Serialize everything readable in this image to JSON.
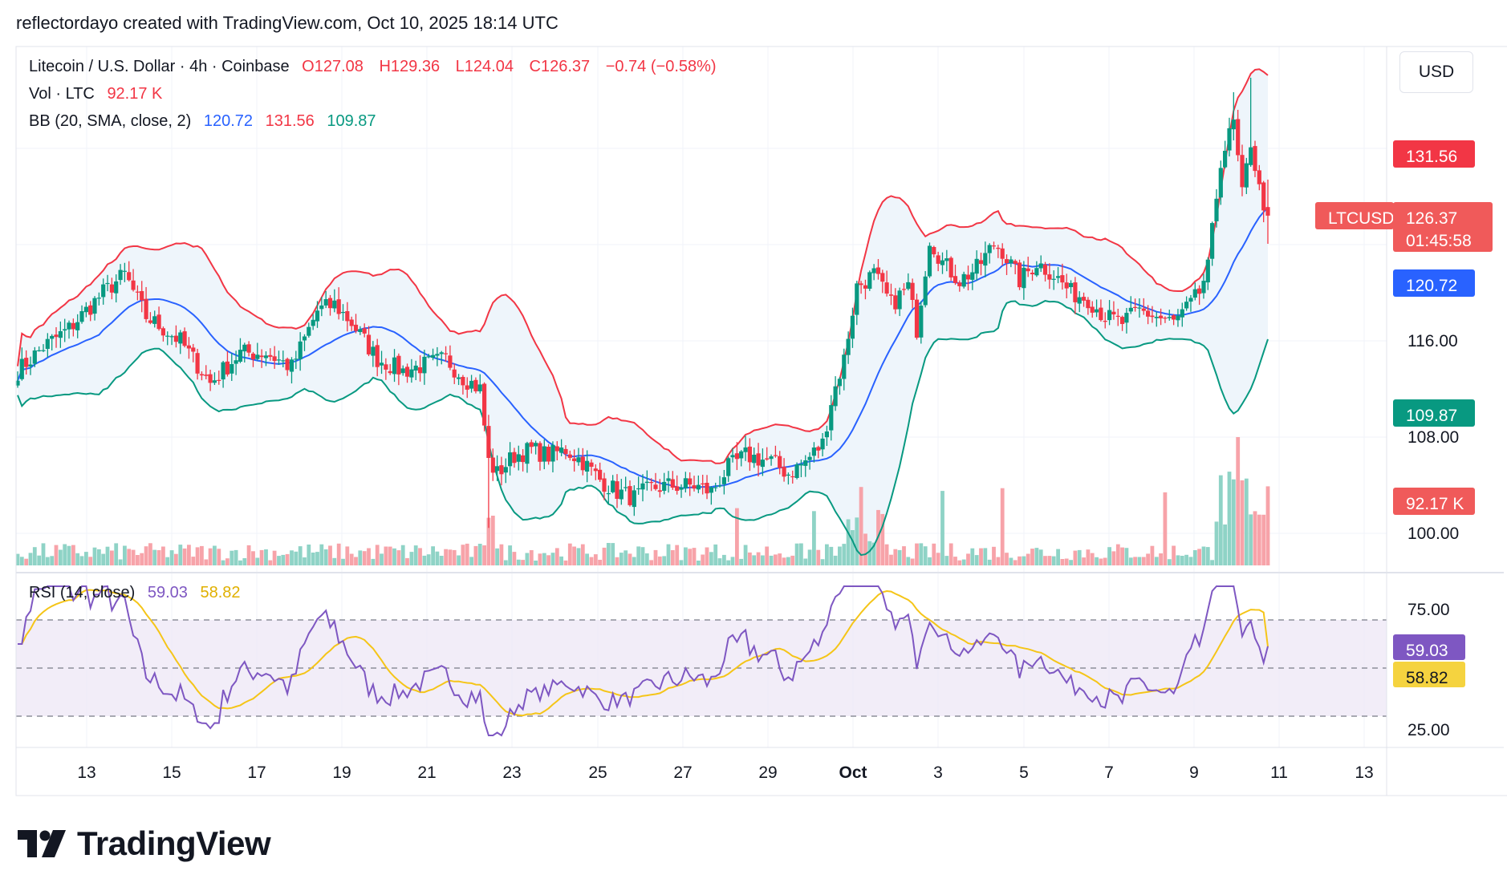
{
  "header": {
    "attribution": "reflectordayo created with TradingView.com, Oct 10, 2025 18:14 UTC",
    "currency_button": "USD"
  },
  "legend": {
    "symbol": "Litecoin / U.S. Dollar · 4h · Coinbase",
    "open": "O127.08",
    "high": "H129.36",
    "low": "L124.04",
    "close": "C126.37",
    "change": "−0.74 (−0.58%)",
    "vol_label": "Vol · LTC",
    "vol_value": "92.17 K",
    "bb_label": "BB (20, SMA, close, 2)",
    "bb_basis": "120.72",
    "bb_upper": "131.56",
    "bb_lower": "109.87",
    "rsi_label": "RSI (14, close)",
    "rsi_value": "59.03",
    "rsi_ma": "58.82"
  },
  "price_scale": {
    "ticks": [
      "116.00",
      "108.00",
      "100.00"
    ],
    "badges": {
      "bb_upper": "131.56",
      "symbol": "LTCUSD",
      "last_price": "126.37",
      "countdown": "01:45:58",
      "bb_basis": "120.72",
      "bb_lower": "109.87",
      "volume": "92.17 K"
    }
  },
  "rsi_scale": {
    "ticks": [
      "75.00",
      "25.00"
    ],
    "badges": {
      "rsi": "59.03",
      "rsi_ma": "58.82"
    }
  },
  "time_axis": [
    "13",
    "15",
    "17",
    "19",
    "21",
    "23",
    "25",
    "27",
    "29",
    "Oct",
    "3",
    "5",
    "7",
    "9",
    "11",
    "13"
  ],
  "colors": {
    "up": "#089981",
    "down": "#f23645",
    "bb_basis": "#2962ff",
    "bb_upper": "#f23645",
    "bb_lower": "#089981",
    "rsi": "#7e57c2",
    "rsi_ma": "#f5c518",
    "bb_fill": "#eef5fb"
  },
  "footer": {
    "brand": "TradingView",
    "logo": "tradingview-logo-icon"
  },
  "chart_data": {
    "type": "candlestick",
    "title": "Litecoin / U.S. Dollar · 4h · Coinbase",
    "interval": "4h",
    "x_labels": [
      "13",
      "15",
      "17",
      "19",
      "21",
      "23",
      "25",
      "27",
      "29",
      "Oct",
      "3",
      "5",
      "7",
      "9",
      "11",
      "13"
    ],
    "price_path_keypoints": [
      [
        0,
        113.5
      ],
      [
        6,
        115.5
      ],
      [
        12,
        117.0
      ],
      [
        20,
        120.0
      ],
      [
        25,
        121.5
      ],
      [
        30,
        118.0
      ],
      [
        38,
        116.0
      ],
      [
        45,
        112.5
      ],
      [
        52,
        115.0
      ],
      [
        58,
        115.0
      ],
      [
        64,
        113.8
      ],
      [
        70,
        118.5
      ],
      [
        74,
        119.0
      ],
      [
        78,
        117.5
      ],
      [
        84,
        114.5
      ],
      [
        90,
        113.5
      ],
      [
        95,
        114.0
      ],
      [
        100,
        114.5
      ],
      [
        104,
        113.0
      ],
      [
        108,
        112.0
      ],
      [
        110,
        106.0
      ],
      [
        112,
        105.0
      ],
      [
        116,
        106.5
      ],
      [
        120,
        107.0
      ],
      [
        124,
        106.5
      ],
      [
        128,
        107.0
      ],
      [
        132,
        106.0
      ],
      [
        136,
        104.5
      ],
      [
        140,
        103.5
      ],
      [
        144,
        103.0
      ],
      [
        148,
        103.8
      ],
      [
        152,
        104.0
      ],
      [
        158,
        104.0
      ],
      [
        162,
        103.5
      ],
      [
        166,
        105.5
      ],
      [
        170,
        106.5
      ],
      [
        176,
        106.0
      ],
      [
        180,
        105.0
      ],
      [
        184,
        106.0
      ],
      [
        188,
        107.5
      ],
      [
        190,
        111.0
      ],
      [
        193,
        114.5
      ],
      [
        196,
        120.5
      ],
      [
        200,
        121.5
      ],
      [
        204,
        119.0
      ],
      [
        208,
        120.5
      ],
      [
        210,
        117.0
      ],
      [
        213,
        124.5
      ],
      [
        216,
        122.5
      ],
      [
        220,
        121.0
      ],
      [
        224,
        122.0
      ],
      [
        228,
        124.0
      ],
      [
        230,
        123.5
      ],
      [
        234,
        121.0
      ],
      [
        238,
        122.5
      ],
      [
        242,
        121.5
      ],
      [
        246,
        120.0
      ],
      [
        250,
        119.5
      ],
      [
        254,
        118.0
      ],
      [
        258,
        117.5
      ],
      [
        262,
        118.5
      ],
      [
        266,
        118.0
      ],
      [
        270,
        117.5
      ],
      [
        274,
        119.0
      ],
      [
        276,
        120.0
      ],
      [
        278,
        122.0
      ],
      [
        281,
        131.0
      ],
      [
        284,
        134.0
      ],
      [
        286,
        128.0
      ],
      [
        288,
        132.5
      ],
      [
        290,
        128.5
      ],
      [
        292,
        126.37
      ]
    ],
    "volume": {
      "baseline_hint": "moderate volume with spikes around Sep 22, Oct 2, Oct 3, Oct 5, Oct 10",
      "last": "92.17 K"
    },
    "indicators": {
      "bollinger_bands": {
        "params": "20, SMA, close, 2",
        "basis": 120.72,
        "upper": 131.56,
        "lower": 109.87
      },
      "rsi": {
        "params": "14, close",
        "value": 59.03,
        "ma": 58.82,
        "levels": [
          70,
          50,
          30
        ]
      }
    },
    "y_axis_ticks": [
      116.0,
      108.0,
      100.0
    ],
    "rsi_axis_ticks": [
      75.0,
      25.0
    ]
  }
}
